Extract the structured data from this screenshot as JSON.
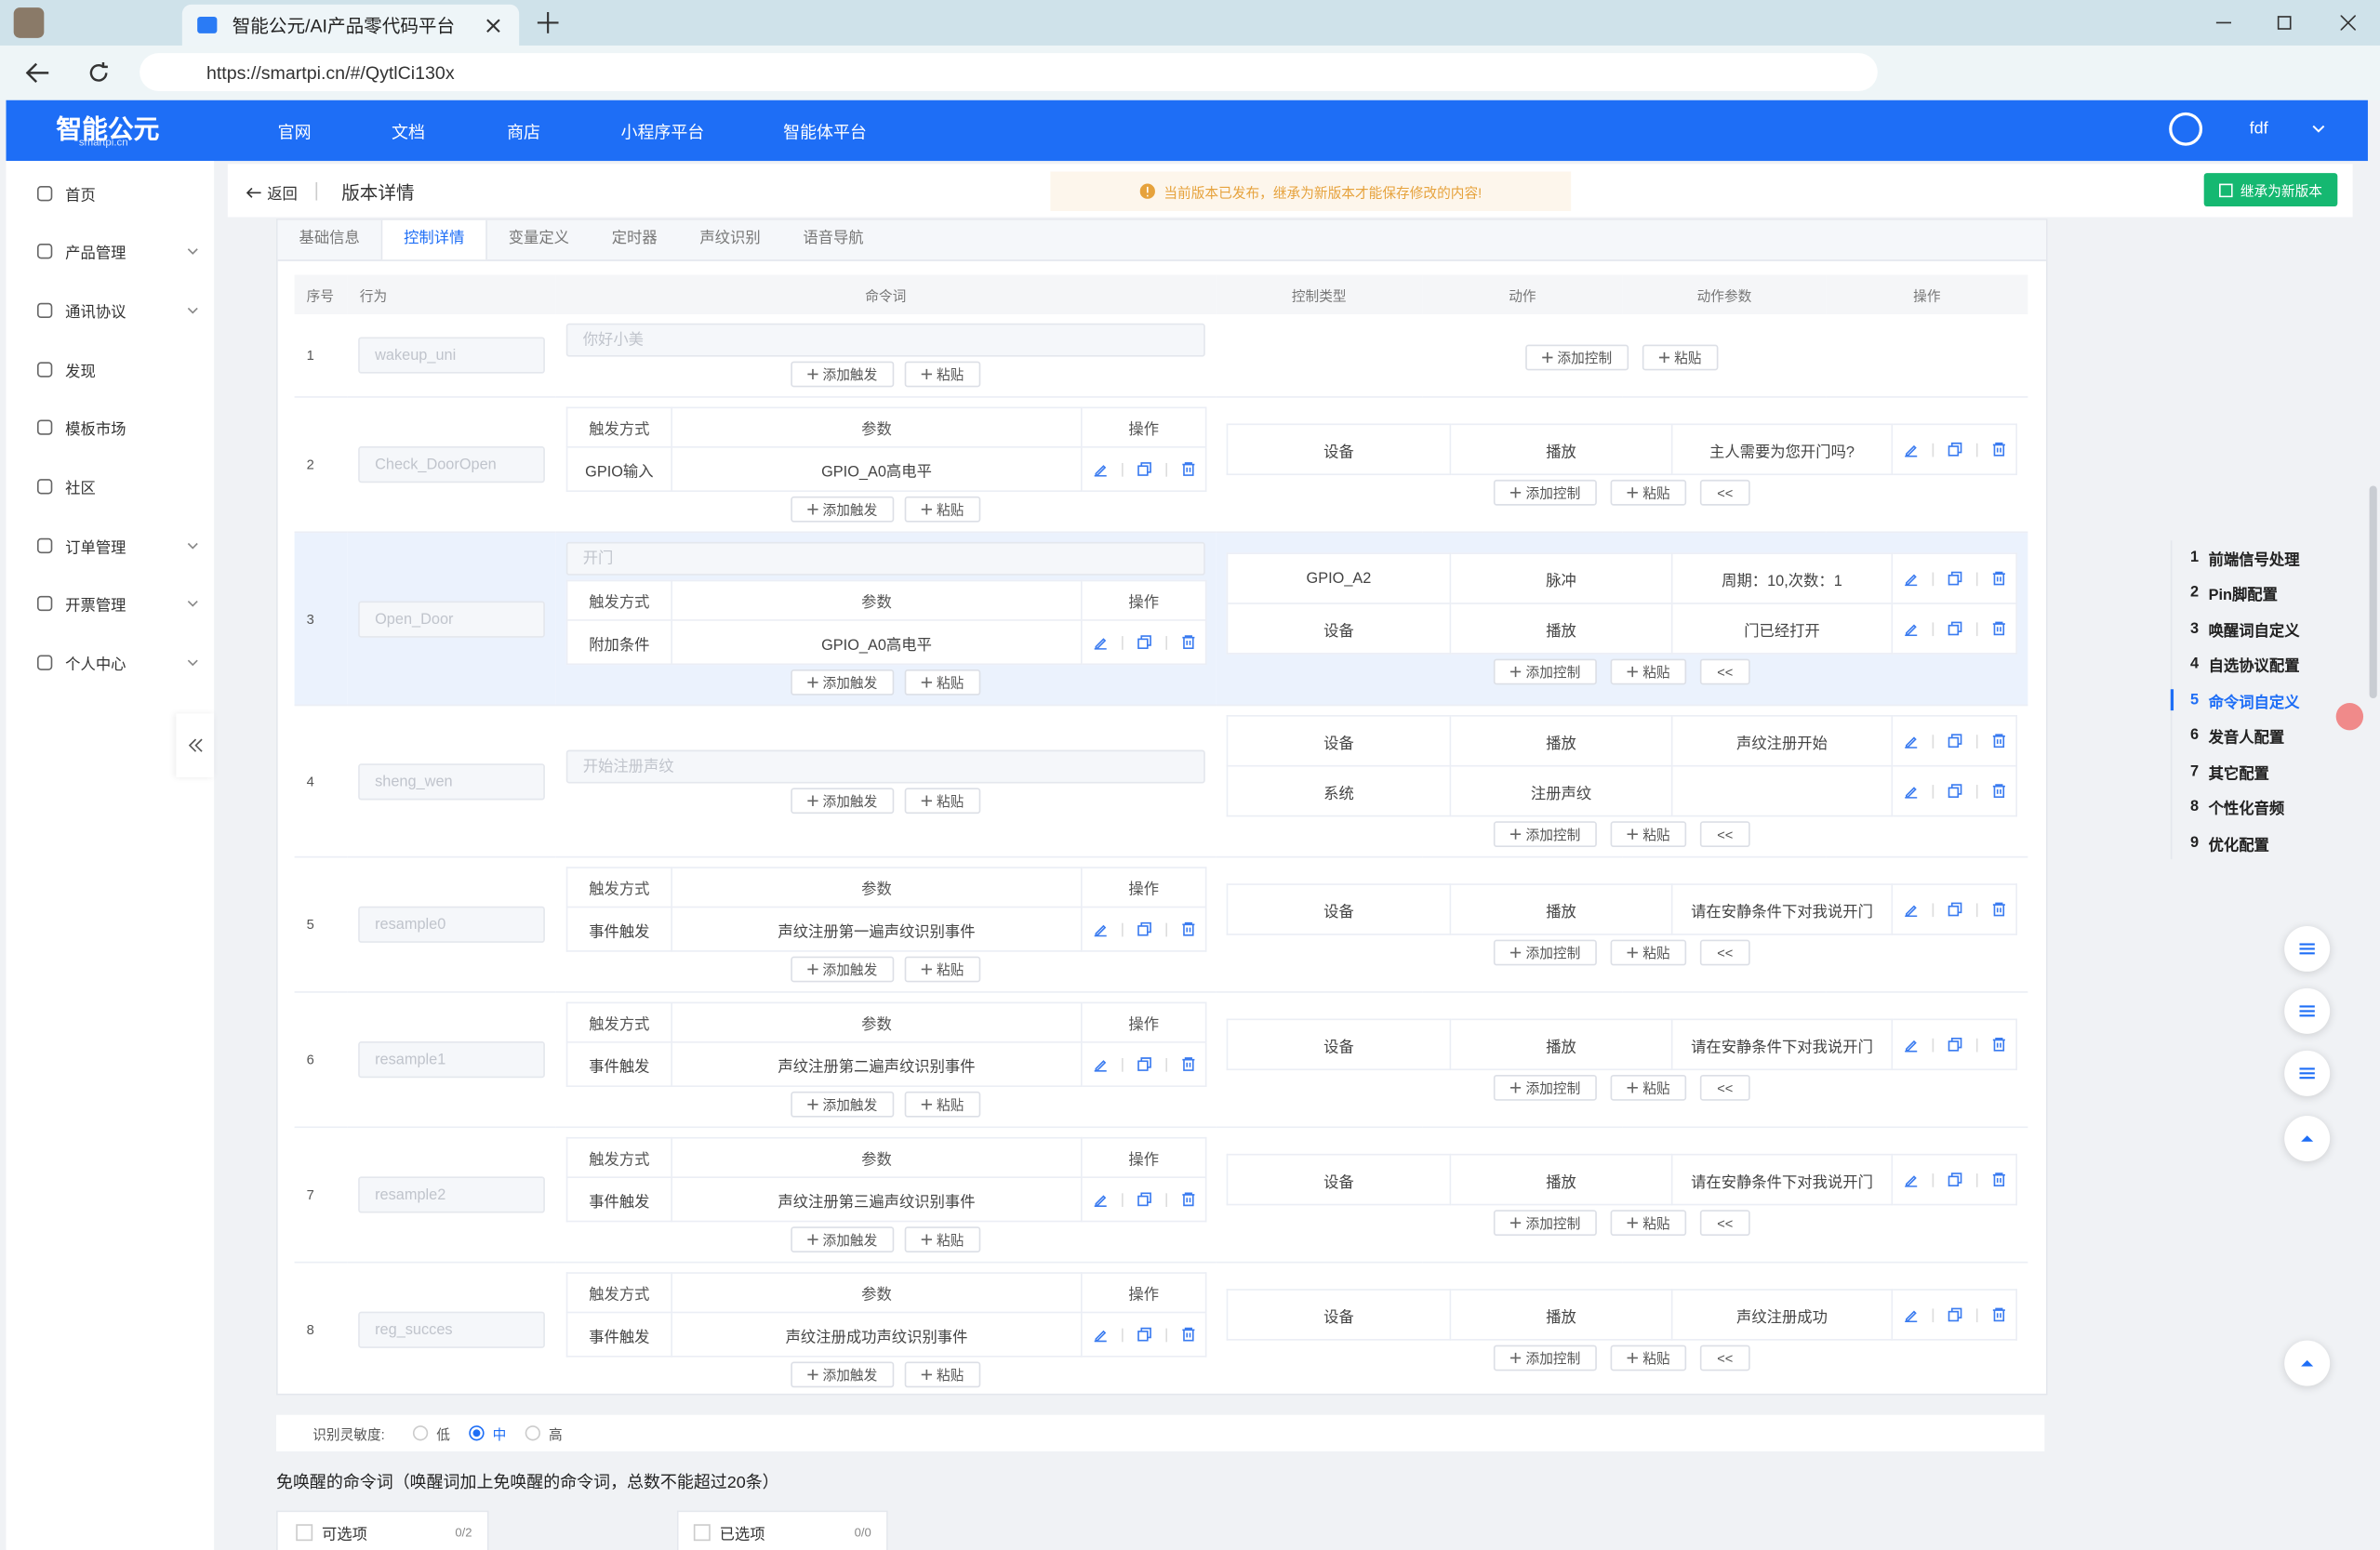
{
  "browser": {
    "tab_title": "智能公元/AI产品零代码平台",
    "url": "https://smartpi.cn/#/QytlCi130x"
  },
  "header": {
    "logo": "智能公元",
    "logo_sub": "smartpi.cn",
    "nav": [
      "官网",
      "文档",
      "商店",
      "小程序平台",
      "智能体平台"
    ],
    "user": "fdf"
  },
  "sidebar": [
    {
      "label": "首页"
    },
    {
      "label": "产品管理",
      "expandable": true
    },
    {
      "label": "通讯协议",
      "expandable": true
    },
    {
      "label": "发现"
    },
    {
      "label": "模板市场"
    },
    {
      "label": "社区"
    },
    {
      "label": "订单管理",
      "expandable": true
    },
    {
      "label": "开票管理",
      "expandable": true
    },
    {
      "label": "个人中心",
      "expandable": true
    }
  ],
  "page": {
    "back": "返回",
    "title": "版本详情",
    "notice": "当前版本已发布，继承为新版本才能保存修改的内容!",
    "primary_button": "继承为新版本"
  },
  "tabs": {
    "items": [
      "基础信息",
      "控制详情",
      "变量定义",
      "定时器",
      "声纹识别",
      "语音导航"
    ],
    "active": 1
  },
  "table": {
    "headers": [
      "序号",
      "行为",
      "命令词",
      "控制类型",
      "动作",
      "动作参数",
      "操作"
    ],
    "trigger_headers": [
      "触发方式",
      "参数",
      "操作"
    ],
    "buttons": {
      "add_trigger": "添加触发",
      "paste": "粘贴",
      "add_control": "添加控制",
      "collapse": "<<"
    },
    "rows": [
      {
        "no": "1",
        "behavior": "wakeup_uni",
        "command": "你好小美",
        "triggers": [],
        "controls": []
      },
      {
        "no": "2",
        "behavior": "Check_DoorOpen",
        "triggers": [
          [
            "GPIO输入",
            "GPIO_A0高电平"
          ]
        ],
        "controls": [
          [
            "设备",
            "播放",
            "主人需要为您开门吗?"
          ]
        ]
      },
      {
        "no": "3",
        "behavior": "Open_Door",
        "command": "开门",
        "highlighted": true,
        "triggers": [
          [
            "附加条件",
            "GPIO_A0高电平"
          ]
        ],
        "controls": [
          [
            "GPIO_A2",
            "脉冲",
            "周期：10,次数：1"
          ],
          [
            "设备",
            "播放",
            "门已经打开"
          ]
        ]
      },
      {
        "no": "4",
        "behavior": "sheng_wen",
        "command": "开始注册声纹",
        "triggers": [],
        "controls": [
          [
            "设备",
            "播放",
            "声纹注册开始"
          ],
          [
            "系统",
            "注册声纹",
            null
          ]
        ]
      },
      {
        "no": "5",
        "behavior": "resample0",
        "triggers": [
          [
            "事件触发",
            "声纹注册第一遍声纹识别事件"
          ]
        ],
        "controls": [
          [
            "设备",
            "播放",
            "请在安静条件下对我说开门"
          ]
        ]
      },
      {
        "no": "6",
        "behavior": "resample1",
        "triggers": [
          [
            "事件触发",
            "声纹注册第二遍声纹识别事件"
          ]
        ],
        "controls": [
          [
            "设备",
            "播放",
            "请在安静条件下对我说开门"
          ]
        ]
      },
      {
        "no": "7",
        "behavior": "resample2",
        "triggers": [
          [
            "事件触发",
            "声纹注册第三遍声纹识别事件"
          ]
        ],
        "controls": [
          [
            "设备",
            "播放",
            "请在安静条件下对我说开门"
          ]
        ]
      },
      {
        "no": "8",
        "behavior": "reg_succes",
        "triggers": [
          [
            "事件触发",
            "声纹注册成功声纹识别事件"
          ]
        ],
        "controls": [
          [
            "设备",
            "播放",
            "声纹注册成功"
          ]
        ]
      }
    ]
  },
  "sensitivity": {
    "label": "识别灵敏度:",
    "options": [
      "低",
      "中",
      "高"
    ],
    "selected": 1
  },
  "wakeless": {
    "title": "免唤醒的命令词（唤醒词加上免唤醒的命令词，总数不能超过20条）",
    "available": {
      "label": "可选项",
      "count": "0/2"
    },
    "chosen": {
      "label": "已选项",
      "count": "0/0"
    }
  },
  "outline": {
    "items": [
      {
        "no": "1",
        "label": "前端信号处理"
      },
      {
        "no": "2",
        "label": "Pin脚配置"
      },
      {
        "no": "3",
        "label": "唤醒词自定义"
      },
      {
        "no": "4",
        "label": "自选协议配置"
      },
      {
        "no": "5",
        "label": "命令词自定义"
      },
      {
        "no": "6",
        "label": "发音人配置"
      },
      {
        "no": "7",
        "label": "其它配置"
      },
      {
        "no": "8",
        "label": "个性化音频"
      },
      {
        "no": "9",
        "label": "优化配置"
      }
    ],
    "active": 4
  }
}
